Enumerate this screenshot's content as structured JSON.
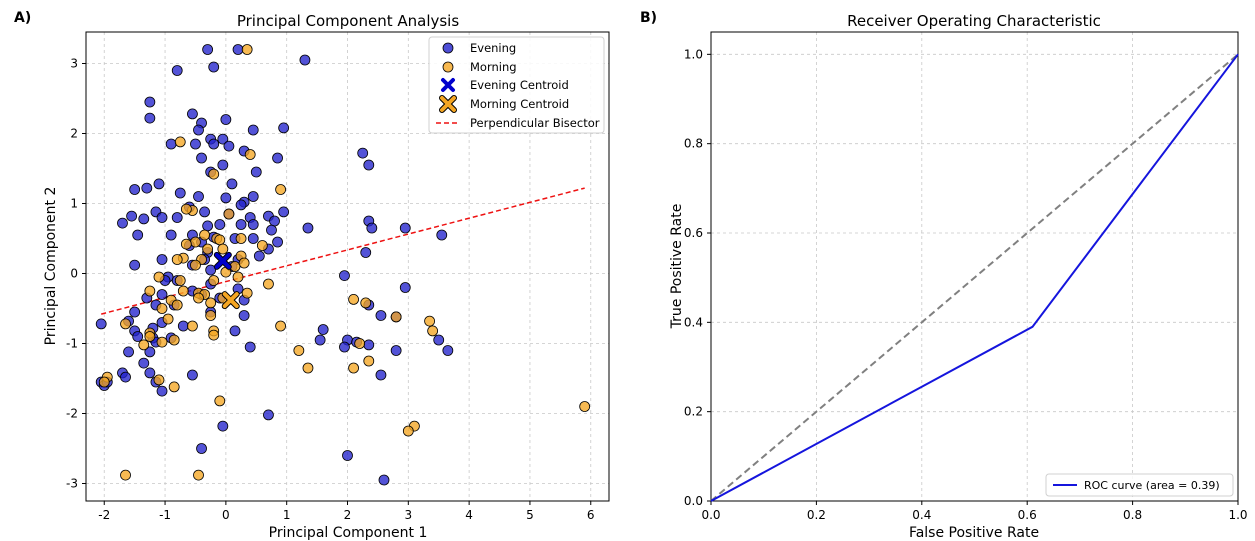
{
  "figure": {
    "panel_a_letter": "A)",
    "panel_b_letter": "B)"
  },
  "chart_data": [
    {
      "type": "scatter",
      "title": "Principal Component Analysis",
      "xlabel": "Principal Component 1",
      "ylabel": "Principal Component 2",
      "xlim": [
        -2.3,
        6.3
      ],
      "ylim": [
        -3.25,
        3.45
      ],
      "xticks": [
        -2,
        -1,
        0,
        1,
        2,
        3,
        4,
        5,
        6
      ],
      "yticks": [
        -3,
        -2,
        -1,
        0,
        1,
        2,
        3
      ],
      "grid": true,
      "legend_position": "top-right",
      "legend": [
        "Evening",
        "Morning",
        "Evening Centroid",
        "Morning Centroid",
        "Perpendicular Bisector"
      ],
      "colors": {
        "evening": "#2222cc",
        "morning": "#f5a623",
        "evening_centroid": "#0000cc",
        "morning_centroid": "#f5a623",
        "bisector": "#ee1111"
      },
      "series": [
        {
          "name": "Evening",
          "points": [
            [
              -0.3,
              3.2
            ],
            [
              0.2,
              3.2
            ],
            [
              1.3,
              3.05
            ],
            [
              -0.2,
              2.95
            ],
            [
              -0.8,
              2.9
            ],
            [
              -1.25,
              2.45
            ],
            [
              -0.55,
              2.28
            ],
            [
              0,
              2.2
            ],
            [
              -1.25,
              2.22
            ],
            [
              -0.4,
              2.15
            ],
            [
              0.95,
              2.08
            ],
            [
              -0.45,
              2.05
            ],
            [
              0.45,
              2.05
            ],
            [
              -0.25,
              1.92
            ],
            [
              -0.05,
              1.92
            ],
            [
              -0.5,
              1.85
            ],
            [
              -0.2,
              1.85
            ],
            [
              -0.9,
              1.85
            ],
            [
              0.05,
              1.82
            ],
            [
              0.3,
              1.75
            ],
            [
              0.85,
              1.65
            ],
            [
              -0.4,
              1.65
            ],
            [
              2.25,
              1.72
            ],
            [
              -0.05,
              1.55
            ],
            [
              2.35,
              1.55
            ],
            [
              -0.25,
              1.45
            ],
            [
              0.5,
              1.45
            ],
            [
              -1.1,
              1.28
            ],
            [
              -1.3,
              1.22
            ],
            [
              0.1,
              1.28
            ],
            [
              -1.5,
              1.2
            ],
            [
              -0.75,
              1.15
            ],
            [
              -0.45,
              1.1
            ],
            [
              0.45,
              1.1
            ],
            [
              0,
              1.08
            ],
            [
              0.3,
              1.02
            ],
            [
              0.25,
              0.98
            ],
            [
              -0.6,
              0.95
            ],
            [
              -1.55,
              0.82
            ],
            [
              -1.35,
              0.78
            ],
            [
              -1.15,
              0.88
            ],
            [
              -1.05,
              0.8
            ],
            [
              -0.8,
              0.8
            ],
            [
              -0.35,
              0.88
            ],
            [
              0.05,
              0.85
            ],
            [
              0.7,
              0.82
            ],
            [
              0.95,
              0.88
            ],
            [
              -1.7,
              0.72
            ],
            [
              0.4,
              0.8
            ],
            [
              0.8,
              0.75
            ],
            [
              2.35,
              0.75
            ],
            [
              -0.3,
              0.68
            ],
            [
              -0.1,
              0.7
            ],
            [
              0.25,
              0.7
            ],
            [
              0.45,
              0.7
            ],
            [
              1.35,
              0.65
            ],
            [
              2.4,
              0.65
            ],
            [
              2.95,
              0.65
            ],
            [
              0.75,
              0.62
            ],
            [
              -0.9,
              0.55
            ],
            [
              -1.45,
              0.55
            ],
            [
              -0.55,
              0.55
            ],
            [
              -0.2,
              0.52
            ],
            [
              0.15,
              0.5
            ],
            [
              0.45,
              0.5
            ],
            [
              0.85,
              0.45
            ],
            [
              3.55,
              0.55
            ],
            [
              -0.4,
              0.45
            ],
            [
              -0.6,
              0.4
            ],
            [
              0.7,
              0.35
            ],
            [
              -0.3,
              0.3
            ],
            [
              0.55,
              0.25
            ],
            [
              2.3,
              0.3
            ],
            [
              -1.05,
              0.2
            ],
            [
              -0.35,
              0.2
            ],
            [
              0.2,
              0.2
            ],
            [
              -1.5,
              0.12
            ],
            [
              -0.55,
              0.12
            ],
            [
              0.1,
              0.1
            ],
            [
              -0.25,
              0.05
            ],
            [
              -0.95,
              -0.05
            ],
            [
              -1,
              -0.1
            ],
            [
              -0.25,
              -0.15
            ],
            [
              0.2,
              -0.22
            ],
            [
              -0.8,
              -0.1
            ],
            [
              1.95,
              -0.03
            ],
            [
              -0.55,
              -0.25
            ],
            [
              -0.4,
              -0.3
            ],
            [
              -1.05,
              -0.3
            ],
            [
              -1.3,
              -0.35
            ],
            [
              -0.1,
              -0.35
            ],
            [
              0.3,
              -0.38
            ],
            [
              2.95,
              -0.2
            ],
            [
              -1.15,
              -0.45
            ],
            [
              -0.85,
              -0.45
            ],
            [
              -0.25,
              -0.55
            ],
            [
              2.35,
              -0.45
            ],
            [
              -1.5,
              -0.55
            ],
            [
              0.3,
              -0.6
            ],
            [
              -1.6,
              -0.68
            ],
            [
              -1.05,
              -0.7
            ],
            [
              2.55,
              -0.6
            ],
            [
              2.8,
              -0.62
            ],
            [
              -0.7,
              -0.75
            ],
            [
              -1.2,
              -0.78
            ],
            [
              -1.5,
              -0.82
            ],
            [
              1.6,
              -0.8
            ],
            [
              -1.45,
              -0.9
            ],
            [
              -1.2,
              -0.92
            ],
            [
              -0.9,
              -0.92
            ],
            [
              0.15,
              -0.82
            ],
            [
              3.5,
              -0.95
            ],
            [
              1.55,
              -0.95
            ],
            [
              2,
              -0.95
            ],
            [
              2.15,
              -0.98
            ],
            [
              -1.15,
              -0.98
            ],
            [
              1.95,
              -1.05
            ],
            [
              0.4,
              -1.05
            ],
            [
              2.35,
              -1.02
            ],
            [
              3.65,
              -1.1
            ],
            [
              -1.6,
              -1.12
            ],
            [
              -1.25,
              -1.12
            ],
            [
              2.8,
              -1.1
            ],
            [
              -1.35,
              -1.28
            ],
            [
              -1.25,
              -1.42
            ],
            [
              -1.7,
              -1.42
            ],
            [
              -1.65,
              -1.48
            ],
            [
              2.55,
              -1.45
            ],
            [
              -0.55,
              -1.45
            ],
            [
              -1.15,
              -1.55
            ],
            [
              -2.05,
              -1.55
            ],
            [
              -2,
              -1.6
            ],
            [
              -1.95,
              -1.55
            ],
            [
              -1.05,
              -1.68
            ],
            [
              -2.05,
              -0.72
            ],
            [
              0.7,
              -2.02
            ],
            [
              -0.05,
              -2.18
            ],
            [
              -0.4,
              -2.5
            ],
            [
              2,
              -2.6
            ],
            [
              2.6,
              -2.95
            ]
          ]
        },
        {
          "name": "Morning",
          "points": [
            [
              0.35,
              3.2
            ],
            [
              -0.75,
              1.88
            ],
            [
              0.4,
              1.7
            ],
            [
              -0.2,
              1.42
            ],
            [
              0.9,
              1.2
            ],
            [
              -0.55,
              0.9
            ],
            [
              -0.65,
              0.92
            ],
            [
              0.05,
              0.85
            ],
            [
              -0.35,
              0.55
            ],
            [
              -0.15,
              0.5
            ],
            [
              0.25,
              0.5
            ],
            [
              -0.1,
              0.48
            ],
            [
              -0.5,
              0.45
            ],
            [
              -0.65,
              0.42
            ],
            [
              0.6,
              0.4
            ],
            [
              -0.3,
              0.35
            ],
            [
              -0.05,
              0.35
            ],
            [
              0.25,
              0.25
            ],
            [
              -0.7,
              0.22
            ],
            [
              -0.4,
              0.2
            ],
            [
              -0.8,
              0.2
            ],
            [
              0.3,
              0.15
            ],
            [
              0.15,
              0.1
            ],
            [
              -0.5,
              0.12
            ],
            [
              0,
              0.02
            ],
            [
              -0.2,
              -0.1
            ],
            [
              -1.1,
              -0.05
            ],
            [
              0.2,
              -0.05
            ],
            [
              -0.75,
              -0.1
            ],
            [
              0.7,
              -0.15
            ],
            [
              -1.25,
              -0.25
            ],
            [
              -0.7,
              -0.25
            ],
            [
              -0.45,
              -0.28
            ],
            [
              -0.35,
              -0.3
            ],
            [
              0.35,
              -0.28
            ],
            [
              -0.9,
              -0.38
            ],
            [
              -0.45,
              -0.35
            ],
            [
              -0.05,
              -0.35
            ],
            [
              -0.25,
              -0.42
            ],
            [
              -0.8,
              -0.45
            ],
            [
              2.1,
              -0.37
            ],
            [
              2.3,
              -0.42
            ],
            [
              -1.05,
              -0.5
            ],
            [
              -0.25,
              -0.6
            ],
            [
              -0.95,
              -0.65
            ],
            [
              -0.55,
              -0.75
            ],
            [
              0.9,
              -0.75
            ],
            [
              -1.65,
              -0.72
            ],
            [
              -0.2,
              -0.82
            ],
            [
              -1.25,
              -0.85
            ],
            [
              -0.2,
              -0.88
            ],
            [
              -1.25,
              -0.9
            ],
            [
              -0.85,
              -0.95
            ],
            [
              -1.05,
              -0.98
            ],
            [
              -1.35,
              -1.02
            ],
            [
              2.2,
              -1
            ],
            [
              1.2,
              -1.1
            ],
            [
              2.8,
              -0.62
            ],
            [
              3.35,
              -0.68
            ],
            [
              3.4,
              -0.82
            ],
            [
              1.35,
              -1.35
            ],
            [
              2.1,
              -1.35
            ],
            [
              2.35,
              -1.25
            ],
            [
              -0.85,
              -1.62
            ],
            [
              -1.1,
              -1.52
            ],
            [
              -1.95,
              -1.48
            ],
            [
              -2,
              -1.55
            ],
            [
              -0.1,
              -1.82
            ],
            [
              5.9,
              -1.9
            ],
            [
              3.1,
              -2.18
            ],
            [
              3,
              -2.25
            ],
            [
              -1.65,
              -2.88
            ],
            [
              -0.45,
              -2.88
            ]
          ]
        },
        {
          "name": "Evening Centroid",
          "points": [
            [
              -0.05,
              0.18
            ]
          ]
        },
        {
          "name": "Morning Centroid",
          "points": [
            [
              0.08,
              -0.38
            ]
          ]
        },
        {
          "name": "Perpendicular Bisector",
          "line": [
            [
              -2.05,
              -0.58
            ],
            [
              5.9,
              1.22
            ]
          ]
        }
      ]
    },
    {
      "type": "line",
      "title": "Receiver Operating Characteristic",
      "xlabel": "False Positive Rate",
      "ylabel": "True Positive Rate",
      "xlim": [
        0,
        1
      ],
      "ylim": [
        0,
        1.05
      ],
      "xticks": [
        "0.0",
        "0.2",
        "0.4",
        "0.6",
        "0.8",
        "1.0"
      ],
      "yticks": [
        "0.0",
        "0.2",
        "0.4",
        "0.6",
        "0.8",
        "1.0"
      ],
      "grid": true,
      "legend_position": "bottom-right",
      "legend": [
        "ROC curve (area = 0.39)"
      ],
      "colors": {
        "roc": "#1515dd",
        "diagonal": "#808080"
      },
      "series": [
        {
          "name": "ROC curve (area = 0.39)",
          "x": [
            0,
            0.61,
            1.0
          ],
          "y": [
            0,
            0.39,
            1.0
          ]
        },
        {
          "x": [
            0,
            1
          ],
          "y": [
            0,
            1
          ],
          "style": "dashed"
        }
      ]
    }
  ]
}
